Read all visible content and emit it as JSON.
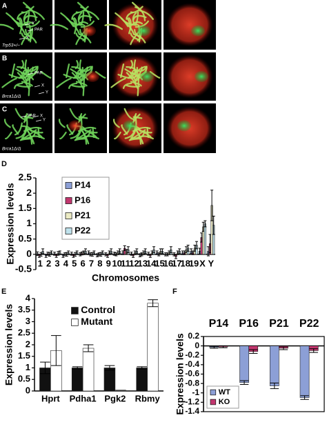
{
  "micrographs": {
    "rows": [
      {
        "panel": "A",
        "genotype": "Trp53+/–",
        "marks": [
          "Y",
          "PAR",
          "X"
        ]
      },
      {
        "panel": "B",
        "genotype": "Brca1Δ/Δ",
        "marks": [
          "PAR",
          "X",
          "Y"
        ]
      },
      {
        "panel": "C",
        "genotype": "Brca1Δ/Δ",
        "marks": [
          "PAR",
          "X",
          "Y"
        ]
      }
    ]
  },
  "chart_data": [
    {
      "type": "bar",
      "panel": "D",
      "y_label": "Expression levels",
      "x_label": "Chromosomes",
      "categories": [
        "1",
        "2",
        "3",
        "4",
        "5",
        "6",
        "7",
        "8",
        "9",
        "10",
        "11",
        "12",
        "13",
        "14",
        "15",
        "16",
        "17",
        "18",
        "19",
        "X",
        "Y"
      ],
      "series": [
        {
          "name": "P14",
          "color": "#8c9fd6",
          "values": [
            0.02,
            -0.05,
            0.02,
            -0.05,
            0.02,
            0.0,
            0.05,
            -0.03,
            0.0,
            0.02,
            0.05,
            0.02,
            -0.03,
            0.02,
            0.05,
            0.0,
            0.0,
            0.05,
            0.1,
            0.1,
            0.1
          ],
          "errors": [
            0.06,
            0.05,
            0.05,
            0.05,
            0.05,
            0.05,
            0.06,
            0.05,
            0.05,
            0.05,
            0.06,
            0.05,
            0.05,
            0.05,
            0.06,
            0.05,
            0.05,
            0.06,
            0.08,
            0.1,
            0.15
          ]
        },
        {
          "name": "P16",
          "color": "#c2366e",
          "values": [
            -0.05,
            0.02,
            -0.05,
            0.0,
            -0.05,
            0.03,
            0.0,
            0.0,
            -0.05,
            0.0,
            0.2,
            -0.05,
            0.0,
            -0.05,
            0.0,
            0.0,
            -0.08,
            0.05,
            0.05,
            0.55,
            0.35
          ],
          "errors": [
            0.05,
            0.05,
            0.05,
            0.05,
            0.05,
            0.05,
            0.05,
            0.05,
            0.05,
            0.05,
            0.08,
            0.05,
            0.05,
            0.05,
            0.05,
            0.05,
            0.06,
            0.06,
            0.06,
            0.15,
            0.3
          ]
        },
        {
          "name": "P21",
          "color": "#ecebc4",
          "values": [
            0.0,
            0.0,
            0.03,
            0.0,
            0.0,
            0.05,
            0.0,
            0.0,
            0.05,
            0.05,
            0.08,
            0.05,
            0.05,
            0.05,
            0.1,
            0.05,
            0.05,
            0.15,
            0.2,
            0.9,
            1.6
          ],
          "errors": [
            0.06,
            0.06,
            0.06,
            0.06,
            0.06,
            0.06,
            0.06,
            0.06,
            0.06,
            0.06,
            0.08,
            0.06,
            0.06,
            0.06,
            0.08,
            0.06,
            0.06,
            0.1,
            0.1,
            0.15,
            0.5
          ]
        },
        {
          "name": "P22",
          "color": "#bfe2ec",
          "values": [
            0.1,
            0.05,
            0.05,
            0.05,
            0.05,
            0.1,
            0.05,
            0.05,
            0.1,
            0.1,
            0.15,
            0.1,
            0.1,
            0.15,
            0.1,
            0.15,
            0.1,
            0.2,
            0.3,
            1.0,
            0.95
          ],
          "errors": [
            0.08,
            0.06,
            0.06,
            0.06,
            0.06,
            0.08,
            0.06,
            0.06,
            0.08,
            0.08,
            0.1,
            0.08,
            0.08,
            0.1,
            0.08,
            0.1,
            0.08,
            0.1,
            0.12,
            0.1,
            0.3
          ]
        }
      ],
      "ylim": [
        -0.5,
        2.5
      ],
      "yticks": [
        -0.5,
        0,
        0.5,
        1,
        1.5,
        2,
        2.5
      ],
      "legend": "upper left"
    },
    {
      "type": "bar",
      "panel": "E",
      "y_label": "Expression levels",
      "categories": [
        "Hprt",
        "Pdha1",
        "Pgk2",
        "Rbmy"
      ],
      "series": [
        {
          "name": "Control",
          "color": "#111111",
          "values": [
            1.0,
            1.0,
            1.0,
            1.0
          ],
          "errors": [
            0.25,
            0.05,
            0.1,
            0.05
          ]
        },
        {
          "name": "Mutant",
          "color": "#ffffff",
          "values": [
            1.75,
            1.85,
            0.03,
            3.8
          ],
          "errors": [
            0.65,
            0.15,
            0.0,
            0.15
          ]
        }
      ],
      "ylim": [
        0,
        4
      ],
      "yticks": [
        0,
        0.5,
        1,
        1.5,
        2,
        2.5,
        3,
        3.5,
        4
      ],
      "legend": "upper center"
    },
    {
      "type": "bar",
      "panel": "F",
      "y_label": "Expression levels",
      "categories": [
        "P14",
        "P16",
        "P21",
        "P22"
      ],
      "series": [
        {
          "name": "WT",
          "color": "#8c9fd6",
          "values": [
            -0.03,
            -0.78,
            -0.85,
            -1.1
          ],
          "errors": [
            0.02,
            0.04,
            0.06,
            0.04
          ]
        },
        {
          "name": "KO",
          "color": "#c2366e",
          "values": [
            -0.02,
            -0.12,
            -0.05,
            -0.1
          ],
          "errors": [
            0.02,
            0.04,
            0.03,
            0.04
          ]
        }
      ],
      "ylim": [
        -1.4,
        0.2
      ],
      "yticks": [
        -1.4,
        -1.2,
        -1,
        -0.8,
        -0.6,
        -0.4,
        -0.2,
        0,
        0.2
      ],
      "legend": "lower left"
    }
  ]
}
